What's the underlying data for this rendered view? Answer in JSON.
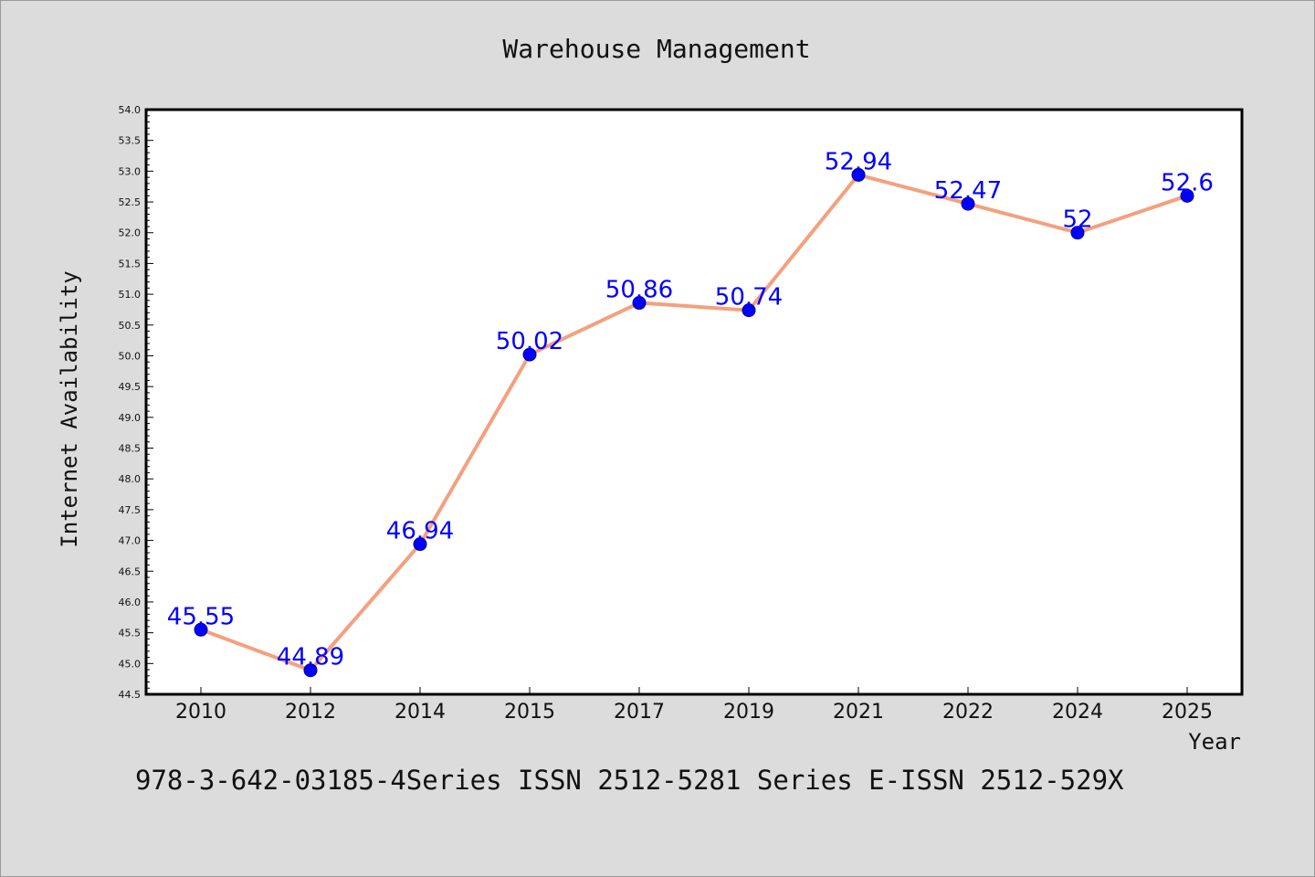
{
  "chart_data": {
    "type": "line",
    "title": "Warehouse Management",
    "xlabel": "Year",
    "ylabel": "Internet Availability",
    "categories": [
      "2010",
      "2012",
      "2014",
      "2015",
      "2017",
      "2019",
      "2021",
      "2022",
      "2024",
      "2025"
    ],
    "series": [
      {
        "values": [
          45.55,
          44.89,
          46.94,
          50.02,
          50.86,
          50.74,
          52.94,
          52.47,
          52.0,
          52.6
        ],
        "labels": [
          "45.55",
          "44.89",
          "46.94",
          "50.02",
          "50.86",
          "50.74",
          "52.94",
          "52.47",
          "52",
          "52.6"
        ]
      }
    ],
    "ylim": [
      44.5,
      54.0
    ],
    "yticks": [
      "44.5",
      "45.0",
      "45.5",
      "46.0",
      "46.5",
      "47.0",
      "47.5",
      "48.0",
      "48.5",
      "49.0",
      "49.5",
      "50.0",
      "50.5",
      "51.0",
      "51.5",
      "52.0",
      "52.5",
      "53.0",
      "53.5",
      "54.0"
    ],
    "grid": false,
    "legend": "none",
    "colors": {
      "line": "#f4a07e",
      "marker": "#0000ff",
      "label": "#0000ff",
      "background": "#dcdcdc",
      "plot": "#ffffff"
    }
  },
  "footer": {
    "text": "978-3-642-03185-4Series ISSN 2512-5281 Series E-ISSN 2512-529X"
  }
}
